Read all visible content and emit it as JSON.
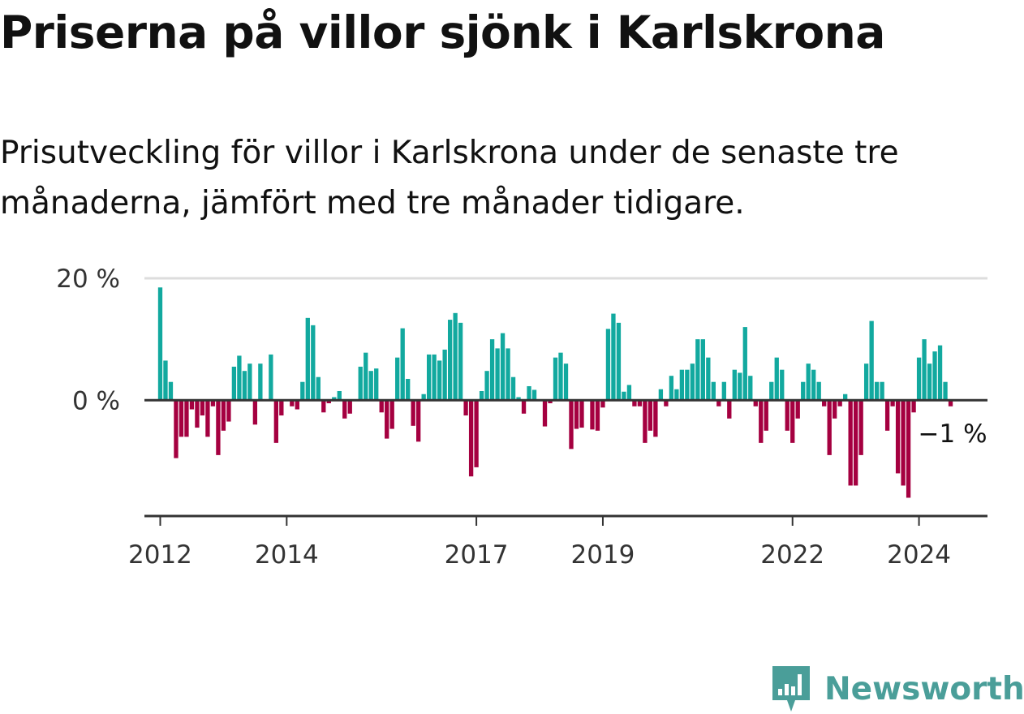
{
  "title": "Priserna på villor sjönk i Karlskrona",
  "subtitle": "Prisutveckling för villor i Karlskrona under de senaste tre månaderna, jämfört med tre månader tidigare.",
  "brand": "Newsworthy",
  "colors": {
    "positive": "#12a99f",
    "negative": "#a50040",
    "axis": "#333333",
    "grid": "#dddddd",
    "brand": "#4a9e99"
  },
  "chart_data": {
    "type": "bar",
    "xlabel": "",
    "ylabel": "",
    "ylim": [
      -19,
      20
    ],
    "xlim": [
      "2011-10",
      "2025-02"
    ],
    "y_ticks": [
      {
        "value": 20,
        "label": "20 %"
      },
      {
        "value": 0,
        "label": "0 %"
      }
    ],
    "x_ticks": [
      {
        "date": "2012-01",
        "label": "2012"
      },
      {
        "date": "2014-01",
        "label": "2014"
      },
      {
        "date": "2017-01",
        "label": "2017"
      },
      {
        "date": "2019-01",
        "label": "2019"
      },
      {
        "date": "2022-01",
        "label": "2022"
      },
      {
        "date": "2024-01",
        "label": "2024"
      }
    ],
    "start": "2012-01",
    "frequency": "monthly",
    "values": [
      18.5,
      6.5,
      3,
      -9.5,
      -6,
      -6,
      -1.5,
      -4.5,
      -2.5,
      -6,
      -1,
      -9,
      -5,
      -3.5,
      5.5,
      7.3,
      4.8,
      6,
      -4,
      6,
      0,
      7.5,
      -7,
      -2.5,
      0,
      -1,
      -1.5,
      3,
      13.5,
      12.3,
      3.8,
      -2,
      -0.5,
      0.5,
      1.5,
      -3,
      -2.2,
      0,
      5.5,
      7.8,
      4.8,
      5.2,
      -2,
      -6.3,
      -4.7,
      7,
      11.8,
      3.5,
      -4.2,
      -6.8,
      1,
      7.5,
      7.5,
      6.5,
      8.3,
      13.2,
      14.3,
      12.7,
      -2.5,
      -12.5,
      -11,
      1.5,
      4.8,
      10,
      8.5,
      11,
      8.5,
      3.8,
      0.5,
      -2.2,
      2.3,
      1.7,
      0,
      -4.3,
      -0.5,
      7,
      7.8,
      6,
      -8,
      -4.7,
      -4.5,
      0,
      -4.8,
      -5,
      -1.2,
      11.7,
      14.2,
      12.7,
      1.4,
      2.5,
      -1,
      -1,
      -7,
      -5,
      -6,
      1.8,
      -1,
      4,
      1.8,
      5,
      5,
      6,
      10,
      10,
      7,
      3,
      -1,
      3,
      -3,
      5,
      4.5,
      12,
      4,
      -1,
      -7,
      -5,
      3,
      7,
      5,
      -5,
      -7,
      -3,
      3,
      6,
      5,
      3,
      -1,
      -9,
      -3,
      -1,
      1,
      -14,
      -14,
      -9,
      6,
      13,
      3,
      3,
      -5,
      -1,
      -12,
      -14,
      -16,
      -2,
      7,
      10,
      6,
      8,
      9,
      3,
      -1
    ],
    "annotation": {
      "label": "−1 %",
      "value": -1
    }
  }
}
